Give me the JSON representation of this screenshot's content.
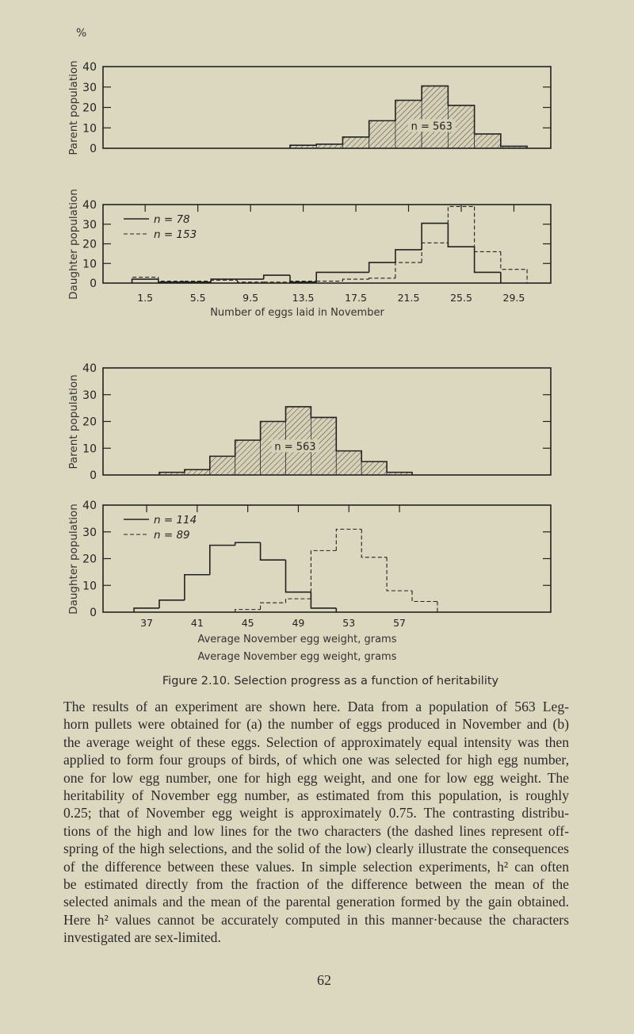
{
  "percent_symbol": "%",
  "chart_data": [
    {
      "type": "bar",
      "panel": "parent-egg-number",
      "ylabel": "Parent population",
      "ylim": [
        0,
        40
      ],
      "yticks": [
        0,
        10,
        20,
        30,
        40
      ],
      "bin_width": 2,
      "annotation": "n = 563",
      "hatched": true,
      "series": [
        {
          "style": "hatched",
          "bins_start": [
            12.5,
            14.5,
            16.5,
            18.5,
            20.5,
            22.5,
            24.5,
            26.5,
            28.5
          ],
          "values": [
            1.5,
            2,
            5.5,
            13.5,
            23.5,
            30.5,
            21,
            7,
            1
          ]
        }
      ]
    },
    {
      "type": "bar",
      "panel": "daughter-egg-number",
      "ylabel": "Daughter population",
      "xlabel": "Number of eggs laid in November",
      "ylim": [
        0,
        40
      ],
      "yticks": [
        0,
        10,
        20,
        30,
        40
      ],
      "xticks": [
        "1.5",
        "5.5",
        "9.5",
        "13.5",
        "17.5",
        "21.5",
        "25.5",
        "29.5"
      ],
      "series": [
        {
          "name": "n = 78",
          "style": "solid",
          "bins_start": [
            0.5,
            2.5,
            4.5,
            6.5,
            8.5,
            10.5,
            12.5,
            14.5,
            16.5,
            18.5,
            20.5,
            22.5,
            24.5,
            26.5
          ],
          "values": [
            2,
            0.5,
            0.5,
            2,
            2,
            4,
            0.5,
            5.5,
            5.5,
            10.5,
            17,
            30.5,
            18.5,
            5.5
          ]
        },
        {
          "name": "n = 153",
          "style": "dashed",
          "bins_start": [
            0.5,
            2.5,
            4.5,
            6.5,
            8.5,
            10.5,
            12.5,
            14.5,
            16.5,
            18.5,
            20.5,
            22.5,
            24.5,
            26.5,
            28.5
          ],
          "values": [
            3,
            1,
            1,
            1.5,
            0.5,
            0.5,
            1,
            1,
            2,
            2.5,
            10.5,
            20.5,
            39,
            16,
            7
          ]
        }
      ]
    },
    {
      "type": "bar",
      "panel": "parent-egg-weight",
      "ylabel": "Parent population",
      "ylim": [
        0,
        40
      ],
      "yticks": [
        0,
        10,
        20,
        30,
        40
      ],
      "bin_width": 2,
      "annotation": "n = 563",
      "hatched": true,
      "series": [
        {
          "style": "hatched",
          "bins_start": [
            38,
            40,
            42,
            44,
            46,
            48,
            50,
            52,
            54,
            56
          ],
          "values": [
            1,
            2,
            7,
            13,
            20,
            25.5,
            21.5,
            9,
            5,
            1
          ]
        }
      ]
    },
    {
      "type": "bar",
      "panel": "daughter-egg-weight",
      "ylabel": "Daughter population",
      "xlabel": "Average November egg weight, grams",
      "ylim": [
        0,
        40
      ],
      "yticks": [
        0,
        10,
        20,
        30,
        40
      ],
      "xticks": [
        "37",
        "41",
        "45",
        "49",
        "53",
        "57"
      ],
      "series": [
        {
          "name": "n = 114",
          "style": "solid",
          "bins_start": [
            36,
            38,
            40,
            42,
            44,
            46,
            48,
            50
          ],
          "values": [
            1.5,
            4.5,
            14,
            25,
            26,
            19.5,
            7.5,
            1.5
          ]
        },
        {
          "name": "n = 89",
          "style": "dashed",
          "bins_start": [
            44,
            46,
            48,
            50,
            52,
            54,
            56,
            58
          ],
          "values": [
            1,
            3.5,
            5,
            23,
            31,
            20.5,
            8,
            4
          ]
        }
      ]
    }
  ],
  "duplicate_xlabel": "Average November egg weight, grams",
  "caption": "Figure 2.10.   Selection progress as a function of heritability",
  "paragraph_lines": [
    "The results of an experiment are shown here.  Data from a population of 563 Leg-",
    "horn pullets were obtained for (a) the number of eggs produced in November and (b)",
    "the average weight of these eggs.  Selection of approximately equal intensity was then",
    "applied to form four groups of birds, of which one was selected for high egg number,",
    "one for low egg number, one for high egg weight, and one for low egg weight.  The",
    "heritability of November egg number, as estimated from this population, is roughly",
    "0.25; that of November egg weight is approximately 0.75.  The contrasting distribu-",
    "tions of the high and low lines for the two characters (the dashed lines represent off-",
    "spring of the high selections, and the solid of the low) clearly illustrate the consequences",
    "of the difference between these values.  In simple selection experiments, h² can often",
    "be estimated directly from the fraction of the difference between the mean of the",
    "selected animals and the mean of the parental generation formed by the gain obtained.",
    "Here h² values cannot be accurately computed in this manner·because the characters",
    "investigated are sex-limited."
  ],
  "page_number": "62"
}
